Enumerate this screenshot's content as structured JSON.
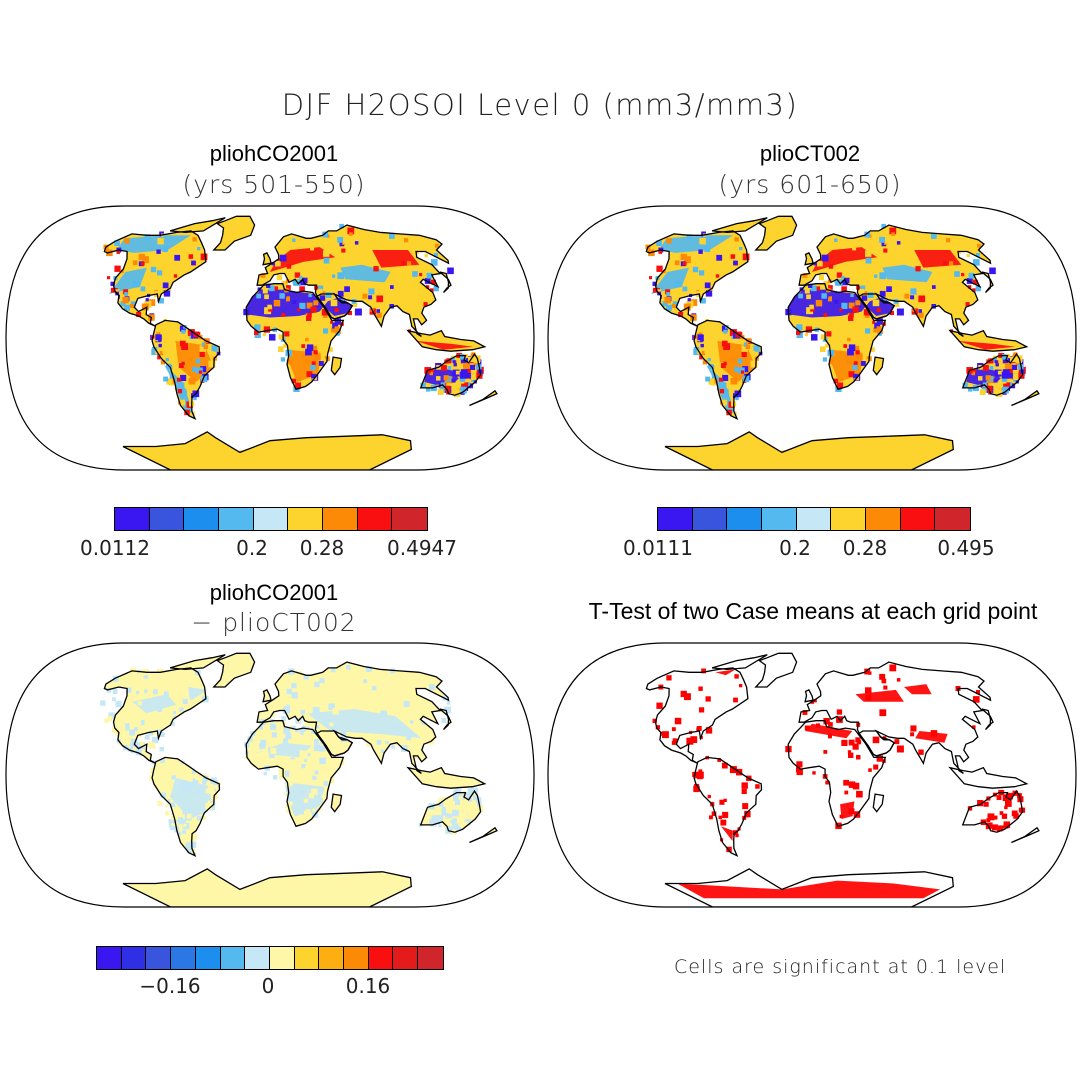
{
  "figure": {
    "title": "DJF H2OSOI Level 0 (mm3/mm3)"
  },
  "panels": [
    {
      "id": "case1",
      "title": "pliohCO2001",
      "subtitle": "(yrs 501-550)",
      "colorbar": {
        "colors": [
          "#3a17f0",
          "#3a55dd",
          "#1c8fee",
          "#53b9ee",
          "#c6e7f5",
          "#fdd42e",
          "#fd8a07",
          "#f90f0f",
          "#d0262b"
        ],
        "tick_labels": [
          "0.0112",
          "0.2",
          "0.28",
          "0.4947"
        ]
      }
    },
    {
      "id": "case2",
      "title": "plioCT002",
      "subtitle": "(yrs 601-650)",
      "colorbar": {
        "colors": [
          "#3a17f0",
          "#3a55dd",
          "#1c8fee",
          "#53b9ee",
          "#c6e7f5",
          "#fdd42e",
          "#fd8a07",
          "#f90f0f",
          "#d0262b"
        ],
        "tick_labels": [
          "0.0111",
          "0.2",
          "0.28",
          "0.495"
        ]
      }
    },
    {
      "id": "difference",
      "title": "pliohCO2001",
      "subtitle": "− plioCT002",
      "colorbar": {
        "colors": [
          "#3a17f0",
          "#2f2fe6",
          "#3a55dd",
          "#2a77e6",
          "#1c8fee",
          "#53b9ee",
          "#c6e7f5",
          "#fff7a8",
          "#fdd42e",
          "#fdaf12",
          "#fd8a07",
          "#f90f0f",
          "#e31b1b",
          "#d0262b"
        ],
        "tick_labels": [
          "−0.16",
          "0",
          "0.16"
        ]
      }
    },
    {
      "id": "ttest",
      "title": "T-Test of two Case means at each grid point",
      "note": "Cells are significant at 0.1 level",
      "significance_color": "#ff0000"
    }
  ],
  "field_colors": {
    "dry": "#3a17f0",
    "moist_low": "#53b9ee",
    "mid": "#fdd42e",
    "wet": "#fd8a07",
    "very_wet": "#f90f0f",
    "diff_pos": "#fff7a8",
    "diff_neg": "#c6e7f5",
    "signif": "#ff0000"
  }
}
